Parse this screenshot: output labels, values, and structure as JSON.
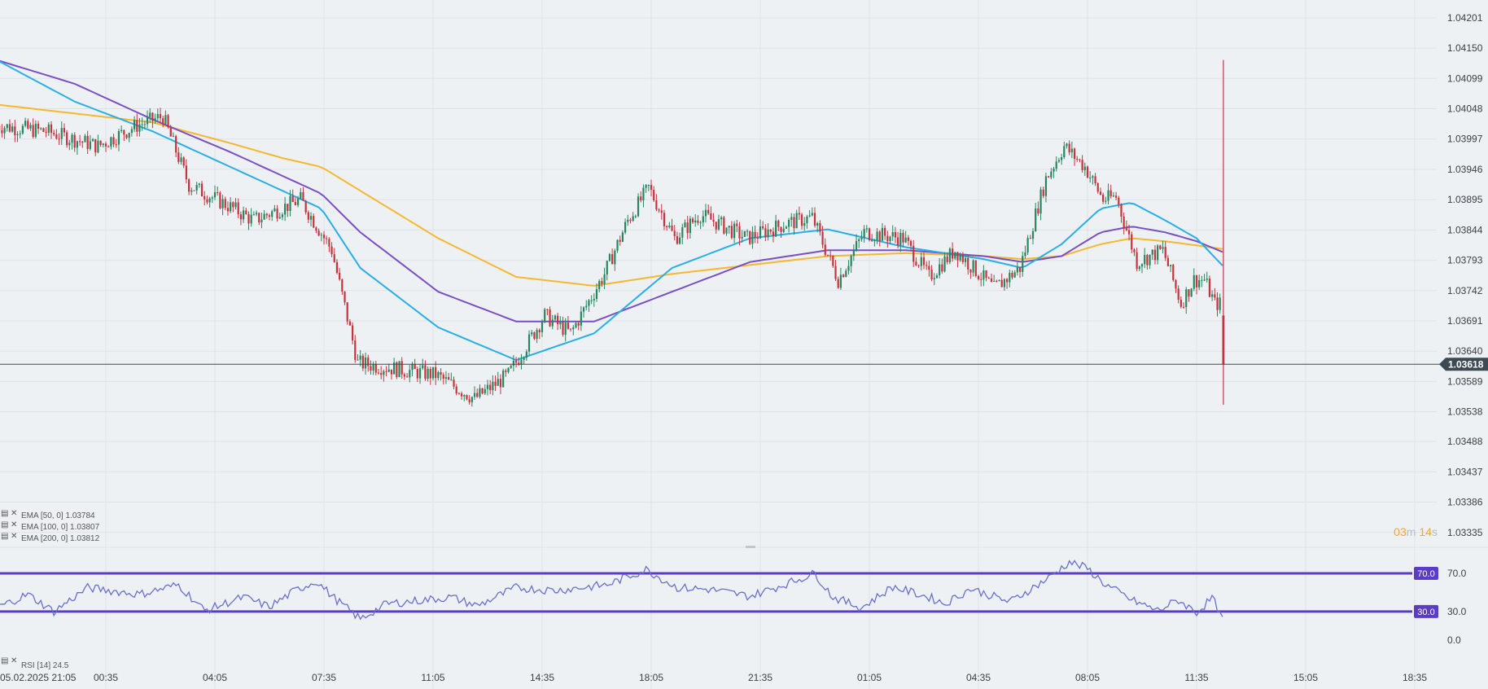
{
  "chart_data": {
    "type": "candlestick",
    "price_axis": {
      "range": [
        1.0331,
        1.0422
      ],
      "ticks": [
        "1.04201",
        "1.04150",
        "1.04099",
        "1.04048",
        "1.03997",
        "1.03946",
        "1.03895",
        "1.03844",
        "1.03793",
        "1.03742",
        "1.03691",
        "1.03640",
        "1.03589",
        "1.03538",
        "1.03488",
        "1.03437",
        "1.03386",
        "1.03335"
      ],
      "current_price": "1.03618",
      "current_price_value": 1.03618
    },
    "time_axis": {
      "labels": [
        "05.02.2025  21:05",
        "00:35",
        "04:05",
        "07:35",
        "11:05",
        "14:35",
        "18:05",
        "21:35",
        "01:05",
        "04:35",
        "08:05",
        "11:35",
        "15:05",
        "18:35"
      ]
    },
    "candles": {
      "interval_minutes": 5,
      "count": 473,
      "price_path": [
        {
          "i": 0,
          "p": 1.0402
        },
        {
          "i": 20,
          "p": 1.0401
        },
        {
          "i": 40,
          "p": 1.03985
        },
        {
          "i": 55,
          "p": 1.0402
        },
        {
          "i": 65,
          "p": 1.04035
        },
        {
          "i": 75,
          "p": 1.0392
        },
        {
          "i": 90,
          "p": 1.03885
        },
        {
          "i": 100,
          "p": 1.0386
        },
        {
          "i": 118,
          "p": 1.03895
        },
        {
          "i": 130,
          "p": 1.0381
        },
        {
          "i": 140,
          "p": 1.0362
        },
        {
          "i": 170,
          "p": 1.036
        },
        {
          "i": 185,
          "p": 1.0356
        },
        {
          "i": 198,
          "p": 1.036
        },
        {
          "i": 212,
          "p": 1.037
        },
        {
          "i": 222,
          "p": 1.0367
        },
        {
          "i": 235,
          "p": 1.0377
        },
        {
          "i": 244,
          "p": 1.0386
        },
        {
          "i": 252,
          "p": 1.03915
        },
        {
          "i": 262,
          "p": 1.0383
        },
        {
          "i": 272,
          "p": 1.0387
        },
        {
          "i": 290,
          "p": 1.0383
        },
        {
          "i": 305,
          "p": 1.03855
        },
        {
          "i": 315,
          "p": 1.03865
        },
        {
          "i": 325,
          "p": 1.0376
        },
        {
          "i": 335,
          "p": 1.0384
        },
        {
          "i": 350,
          "p": 1.0383
        },
        {
          "i": 360,
          "p": 1.03765
        },
        {
          "i": 370,
          "p": 1.0381
        },
        {
          "i": 385,
          "p": 1.03745
        },
        {
          "i": 395,
          "p": 1.0378
        },
        {
          "i": 405,
          "p": 1.0393
        },
        {
          "i": 412,
          "p": 1.03985
        },
        {
          "i": 420,
          "p": 1.0395
        },
        {
          "i": 427,
          "p": 1.03895
        },
        {
          "i": 432,
          "p": 1.039
        },
        {
          "i": 440,
          "p": 1.0379
        },
        {
          "i": 450,
          "p": 1.0381
        },
        {
          "i": 457,
          "p": 1.0372
        },
        {
          "i": 462,
          "p": 1.0376
        },
        {
          "i": 466,
          "p": 1.0376
        },
        {
          "i": 470,
          "p": 1.0372
        }
      ],
      "last_candle": {
        "open": 1.037,
        "high": 1.0413,
        "low": 1.0355,
        "close": 1.03618
      },
      "up_color": "#26865f",
      "down_color": "#c8323c"
    },
    "ema": {
      "path": [
        {
          "i": 0,
          "ema50": 1.0413,
          "ema100": 1.0413,
          "ema200": 1.04055
        },
        {
          "i": 30,
          "ema50": 1.0406,
          "ema100": 1.0409,
          "ema200": 1.0404
        },
        {
          "i": 60,
          "ema50": 1.0401,
          "ema100": 1.0403,
          "ema200": 1.04025
        },
        {
          "i": 90,
          "ema50": 1.0395,
          "ema100": 1.03975,
          "ema200": 1.0399
        },
        {
          "i": 110,
          "ema50": 1.0391,
          "ema100": 1.03935,
          "ema200": 1.03965
        },
        {
          "i": 125,
          "ema50": 1.0388,
          "ema100": 1.03905,
          "ema200": 1.0395
        },
        {
          "i": 140,
          "ema50": 1.0378,
          "ema100": 1.0384,
          "ema200": 1.0391
        },
        {
          "i": 170,
          "ema50": 1.0368,
          "ema100": 1.0374,
          "ema200": 1.0383
        },
        {
          "i": 200,
          "ema50": 1.03625,
          "ema100": 1.0369,
          "ema200": 1.03765
        },
        {
          "i": 230,
          "ema50": 1.0367,
          "ema100": 1.0369,
          "ema200": 1.0375
        },
        {
          "i": 260,
          "ema50": 1.0378,
          "ema100": 1.0374,
          "ema200": 1.0377
        },
        {
          "i": 290,
          "ema50": 1.0383,
          "ema100": 1.0379,
          "ema200": 1.03785
        },
        {
          "i": 320,
          "ema50": 1.03845,
          "ema100": 1.0381,
          "ema200": 1.038
        },
        {
          "i": 350,
          "ema50": 1.03815,
          "ema100": 1.0381,
          "ema200": 1.03805
        },
        {
          "i": 380,
          "ema50": 1.03795,
          "ema100": 1.038,
          "ema200": 1.038
        },
        {
          "i": 395,
          "ema50": 1.0378,
          "ema100": 1.0379,
          "ema200": 1.03795
        },
        {
          "i": 410,
          "ema50": 1.0382,
          "ema100": 1.038,
          "ema200": 1.038
        },
        {
          "i": 425,
          "ema50": 1.0388,
          "ema100": 1.0384,
          "ema200": 1.0382
        },
        {
          "i": 437,
          "ema50": 1.0389,
          "ema100": 1.0385,
          "ema200": 1.0383
        },
        {
          "i": 450,
          "ema50": 1.0386,
          "ema100": 1.0384,
          "ema200": 1.03825
        },
        {
          "i": 462,
          "ema50": 1.0383,
          "ema100": 1.03825,
          "ema200": 1.03818
        },
        {
          "i": 472,
          "ema50": 1.03784,
          "ema100": 1.03807,
          "ema200": 1.03812
        }
      ],
      "colors": {
        "ema50": "#29aee6",
        "ema100": "#7a4fc4",
        "ema200": "#f5b82e"
      }
    },
    "legend": [
      {
        "label": "EMA [50, 0] 1.03784"
      },
      {
        "label": "EMA [100, 0] 1.03807"
      },
      {
        "label": "EMA [200, 0] 1.03812"
      }
    ],
    "countdown": {
      "minutes": "03",
      "m_unit": "m",
      "seconds": "14",
      "s_unit": "s",
      "color": "#f5a623"
    },
    "rsi": {
      "legend": "RSI [14]  24.5",
      "range": [
        0,
        100
      ],
      "ticks": [
        "70.0",
        "30.0",
        "0.0"
      ],
      "upper_level": 70,
      "lower_level": 30,
      "upper_label": "70.0",
      "lower_label": "30.0",
      "line_color": "#6b6fc8",
      "level_color": "#5b3cc4",
      "path": [
        {
          "i": 0,
          "v": 34
        },
        {
          "i": 12,
          "v": 48
        },
        {
          "i": 22,
          "v": 30
        },
        {
          "i": 35,
          "v": 55
        },
        {
          "i": 55,
          "v": 48
        },
        {
          "i": 70,
          "v": 58
        },
        {
          "i": 80,
          "v": 31
        },
        {
          "i": 95,
          "v": 45
        },
        {
          "i": 105,
          "v": 35
        },
        {
          "i": 115,
          "v": 52
        },
        {
          "i": 123,
          "v": 62
        },
        {
          "i": 130,
          "v": 44
        },
        {
          "i": 140,
          "v": 22
        },
        {
          "i": 150,
          "v": 38
        },
        {
          "i": 175,
          "v": 45
        },
        {
          "i": 185,
          "v": 36
        },
        {
          "i": 200,
          "v": 55
        },
        {
          "i": 215,
          "v": 52
        },
        {
          "i": 235,
          "v": 58
        },
        {
          "i": 250,
          "v": 74
        },
        {
          "i": 262,
          "v": 55
        },
        {
          "i": 275,
          "v": 53
        },
        {
          "i": 290,
          "v": 46
        },
        {
          "i": 305,
          "v": 60
        },
        {
          "i": 315,
          "v": 70
        },
        {
          "i": 322,
          "v": 45
        },
        {
          "i": 333,
          "v": 34
        },
        {
          "i": 345,
          "v": 56
        },
        {
          "i": 360,
          "v": 44
        },
        {
          "i": 365,
          "v": 38
        },
        {
          "i": 375,
          "v": 54
        },
        {
          "i": 390,
          "v": 40
        },
        {
          "i": 405,
          "v": 65
        },
        {
          "i": 413,
          "v": 82
        },
        {
          "i": 420,
          "v": 75
        },
        {
          "i": 427,
          "v": 58
        },
        {
          "i": 437,
          "v": 42
        },
        {
          "i": 447,
          "v": 31
        },
        {
          "i": 455,
          "v": 42
        },
        {
          "i": 462,
          "v": 29
        },
        {
          "i": 468,
          "v": 44
        },
        {
          "i": 472,
          "v": 24.5
        }
      ]
    }
  }
}
